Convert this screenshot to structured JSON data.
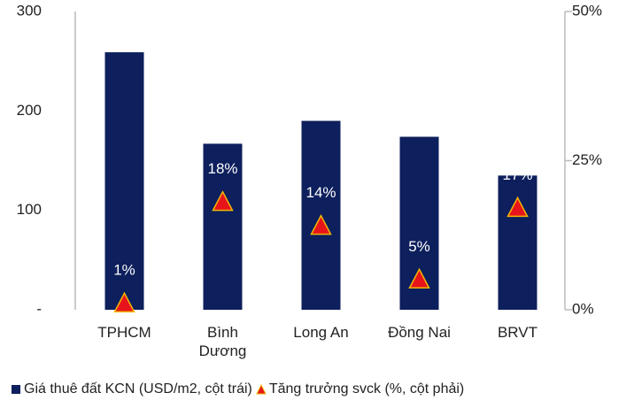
{
  "chart_data": {
    "type": "bar",
    "categories": [
      "TPHCM",
      "Bình Dương",
      "Long An",
      "Đồng Nai",
      "BRVT"
    ],
    "series": [
      {
        "name": "Giá thuê đất KCN (USD/m2, cột trái)",
        "color": "#0d1f5c",
        "values": [
          259,
          167,
          190,
          174,
          135
        ]
      },
      {
        "name": "Tăng trưởng svck (%, cột phải)",
        "color": "#e8141b",
        "axis": "y2",
        "values": [
          1,
          18,
          14,
          5,
          17
        ],
        "value_labels": [
          "1%",
          "18%",
          "14%",
          "5%",
          "17%"
        ]
      }
    ],
    "ylim": [
      0,
      300
    ],
    "yticks": [
      {
        "value": 0,
        "label": "-"
      },
      100,
      200,
      300
    ],
    "y2lim": [
      0,
      50
    ],
    "y2ticks": [
      {
        "value": 0,
        "label": "0%"
      },
      {
        "value": 25,
        "label": "25%"
      },
      {
        "value": 50,
        "label": "50%"
      }
    ],
    "legend": "bottom"
  }
}
